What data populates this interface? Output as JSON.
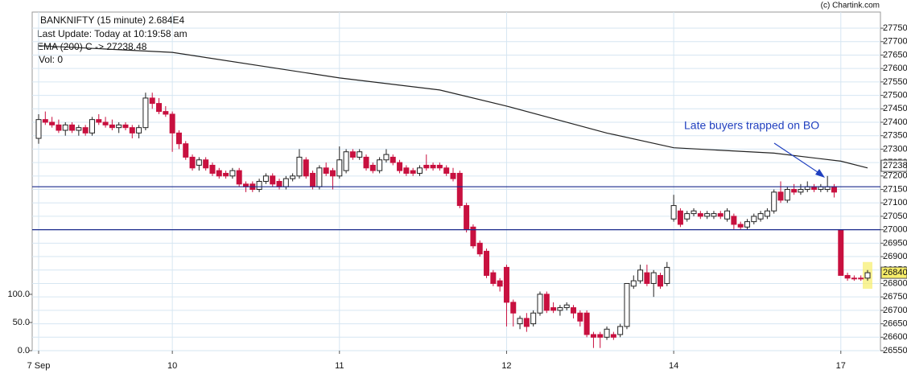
{
  "chart_data": {
    "type": "candlestick",
    "title": "BANKNIFTY (15 minute) 2.684E4",
    "subtitle": "Last Update: Today at 10:19:58 am",
    "volume_label": "Vol: 0",
    "credit": "(c) Chartink.com",
    "annotation": "Late buyers trapped on BO",
    "annotation_color": "#1f3fbf",
    "up_color": "#ffffff",
    "down_color": "#c8103f",
    "grid": true,
    "categories": [
      "7 Sep",
      null,
      null,
      null,
      null,
      null,
      null,
      null,
      null,
      null,
      null,
      null,
      null,
      null,
      null,
      null,
      null,
      null,
      null,
      null,
      "10",
      null,
      null,
      null,
      null,
      null,
      null,
      null,
      null,
      null,
      null,
      null,
      null,
      null,
      null,
      null,
      null,
      null,
      null,
      null,
      null,
      null,
      null,
      null,
      null,
      "11",
      null,
      null,
      null,
      null,
      null,
      null,
      null,
      null,
      null,
      null,
      null,
      null,
      null,
      null,
      null,
      null,
      null,
      null,
      null,
      null,
      null,
      null,
      null,
      null,
      "12",
      null,
      null,
      null,
      null,
      null,
      null,
      null,
      null,
      null,
      null,
      null,
      null,
      null,
      null,
      null,
      null,
      null,
      null,
      null,
      null,
      null,
      null,
      null,
      null,
      "14",
      null,
      null,
      null,
      null,
      null,
      null,
      null,
      null,
      null,
      null,
      null,
      null,
      null,
      null,
      null,
      null,
      null,
      null,
      null,
      null,
      null,
      null,
      null,
      null,
      "17",
      null,
      null,
      null,
      null
    ],
    "open": [
      27340,
      27410,
      27400,
      27390,
      27370,
      27390,
      27370,
      27380,
      27360,
      27410,
      27400,
      27390,
      27380,
      27390,
      27380,
      27360,
      27380,
      27490,
      27470,
      27440,
      27430,
      27360,
      27320,
      27270,
      27240,
      27260,
      27240,
      27220,
      27210,
      27200,
      27220,
      27170,
      27170,
      27150,
      27180,
      27200,
      27180,
      27160,
      27190,
      27200,
      27260,
      27210,
      27160,
      27230,
      27220,
      27200,
      27220,
      27290,
      27270,
      27270,
      27240,
      27220,
      27260,
      27270,
      27250,
      27230,
      27220,
      27210,
      27240,
      27240,
      27240,
      27230,
      27210,
      27210,
      27090,
      27010,
      26950,
      26920,
      26840,
      26810,
      26860,
      26730,
      26650,
      26670,
      26650,
      26690,
      26760,
      26710,
      26700,
      26710,
      26710,
      26690,
      26690,
      26610,
      26610,
      26600,
      26610,
      26610,
      26640,
      26790,
      26810,
      26840,
      26800,
      26830,
      26800,
      27040,
      27070,
      27040,
      27060,
      27060,
      27050,
      27050,
      27060,
      27040,
      27050,
      27020,
      27010,
      27030,
      27040,
      27050,
      27070,
      27140,
      27110,
      27150,
      27140,
      27150,
      27160,
      27150,
      27150,
      27160,
      27000,
      26830,
      26820,
      26820,
      26820
    ],
    "high": [
      27430,
      27440,
      27420,
      27410,
      27400,
      27400,
      27390,
      27390,
      27420,
      27430,
      27420,
      27410,
      27400,
      27400,
      27390,
      27390,
      27510,
      27510,
      27490,
      27460,
      27440,
      27370,
      27330,
      27280,
      27270,
      27270,
      27250,
      27230,
      27220,
      27230,
      27230,
      27180,
      27180,
      27190,
      27210,
      27210,
      27190,
      27200,
      27210,
      27300,
      27270,
      27220,
      27240,
      27250,
      27230,
      27310,
      27300,
      27300,
      27300,
      27280,
      27250,
      27270,
      27300,
      27280,
      27260,
      27240,
      27230,
      27240,
      27280,
      27250,
      27250,
      27240,
      27230,
      27220,
      27100,
      27020,
      26960,
      26930,
      26850,
      26820,
      26870,
      26740,
      26680,
      26690,
      26700,
      26770,
      26770,
      26730,
      26720,
      26730,
      26720,
      26700,
      26700,
      26620,
      26620,
      26640,
      26620,
      26650,
      26800,
      26830,
      26870,
      26870,
      26850,
      26840,
      26880,
      27130,
      27080,
      27070,
      27080,
      27070,
      27070,
      27070,
      27070,
      27080,
      27060,
      27030,
      27040,
      27060,
      27070,
      27080,
      27150,
      27180,
      27160,
      27170,
      27170,
      27180,
      27170,
      27170,
      27200,
      27170,
      27000,
      26840,
      26830,
      26830,
      26850
    ],
    "low": [
      27320,
      27390,
      27380,
      27360,
      27350,
      27360,
      27350,
      27350,
      27350,
      27390,
      27380,
      27370,
      27360,
      27370,
      27340,
      27340,
      27370,
      27450,
      27430,
      27420,
      27290,
      27300,
      27260,
      27220,
      27220,
      27220,
      27200,
      27190,
      27190,
      27190,
      27160,
      27140,
      27140,
      27140,
      27170,
      27160,
      27150,
      27150,
      27180,
      27190,
      27190,
      27150,
      27150,
      27200,
      27150,
      27190,
      27210,
      27260,
      27260,
      27220,
      27210,
      27210,
      27250,
      27240,
      27210,
      27200,
      27200,
      27200,
      27220,
      27220,
      27220,
      27200,
      27180,
      27080,
      26990,
      26930,
      26900,
      26820,
      26790,
      26770,
      26640,
      26640,
      26630,
      26620,
      26640,
      26680,
      26690,
      26690,
      26680,
      26700,
      26670,
      26640,
      26600,
      26560,
      26560,
      26590,
      26590,
      26600,
      26630,
      26780,
      26800,
      26790,
      26750,
      26780,
      26790,
      27030,
      27010,
      27030,
      27050,
      27040,
      27040,
      27040,
      27040,
      27030,
      27000,
      27000,
      27000,
      27020,
      27030,
      27040,
      27060,
      27100,
      27100,
      27130,
      27130,
      27140,
      27140,
      27140,
      27140,
      27120,
      26830,
      26810,
      26810,
      26810,
      26810
    ],
    "close": [
      27410,
      27400,
      27390,
      27370,
      27390,
      27370,
      27380,
      27360,
      27410,
      27400,
      27390,
      27380,
      27390,
      27380,
      27360,
      27380,
      27490,
      27470,
      27440,
      27430,
      27360,
      27320,
      27270,
      27230,
      27260,
      27230,
      27210,
      27200,
      27200,
      27220,
      27170,
      27160,
      27150,
      27180,
      27200,
      27170,
      27160,
      27190,
      27200,
      27270,
      27200,
      27160,
      27230,
      27210,
      27200,
      27260,
      27290,
      27270,
      27290,
      27230,
      27220,
      27260,
      27280,
      27250,
      27220,
      27210,
      27210,
      27230,
      27230,
      27230,
      27230,
      27210,
      27190,
      27090,
      27000,
      26940,
      26910,
      26830,
      26800,
      26790,
      26730,
      26690,
      26670,
      26640,
      26690,
      26760,
      26700,
      26700,
      26710,
      26720,
      26690,
      26660,
      26610,
      26600,
      26600,
      26630,
      26600,
      26640,
      26800,
      26810,
      26850,
      26800,
      26840,
      26790,
      26860,
      27090,
      27020,
      27060,
      27070,
      27050,
      27060,
      27060,
      27050,
      27070,
      27020,
      27010,
      27030,
      27050,
      27060,
      27070,
      27140,
      27110,
      27150,
      27140,
      27150,
      27160,
      27150,
      27160,
      27160,
      27140,
      26830,
      26820,
      26820,
      26820,
      26840
    ],
    "ema": {
      "name": "EMA (200) C -> 27238.48",
      "color": "#222222",
      "x": [
        0,
        20,
        45,
        60,
        70,
        85,
        95,
        110,
        120,
        124
      ],
      "values": [
        27685,
        27660,
        27565,
        27520,
        27460,
        27360,
        27305,
        27285,
        27255,
        27230
      ]
    },
    "hlines": [
      27160,
      27000
    ],
    "hline_color": "#1a2a8c",
    "axis_markers": [
      {
        "value": 27238,
        "color": "#ffffff"
      },
      {
        "value": 26840,
        "color": "#f7ee6a"
      }
    ],
    "ylim": [
      26550,
      27810
    ],
    "yticks": [
      26550,
      26600,
      26650,
      26700,
      26750,
      26800,
      26850,
      26900,
      26950,
      27000,
      27050,
      27100,
      27150,
      27200,
      27250,
      27300,
      27350,
      27400,
      27450,
      27500,
      27550,
      27600,
      27650,
      27700,
      27750
    ],
    "y2lim": [
      0,
      601
    ],
    "y2ticks": [
      {
        "value": 0,
        "label": "0.0"
      },
      {
        "value": 50,
        "label": "50.0"
      },
      {
        "value": 100,
        "label": "100.0"
      }
    ]
  }
}
